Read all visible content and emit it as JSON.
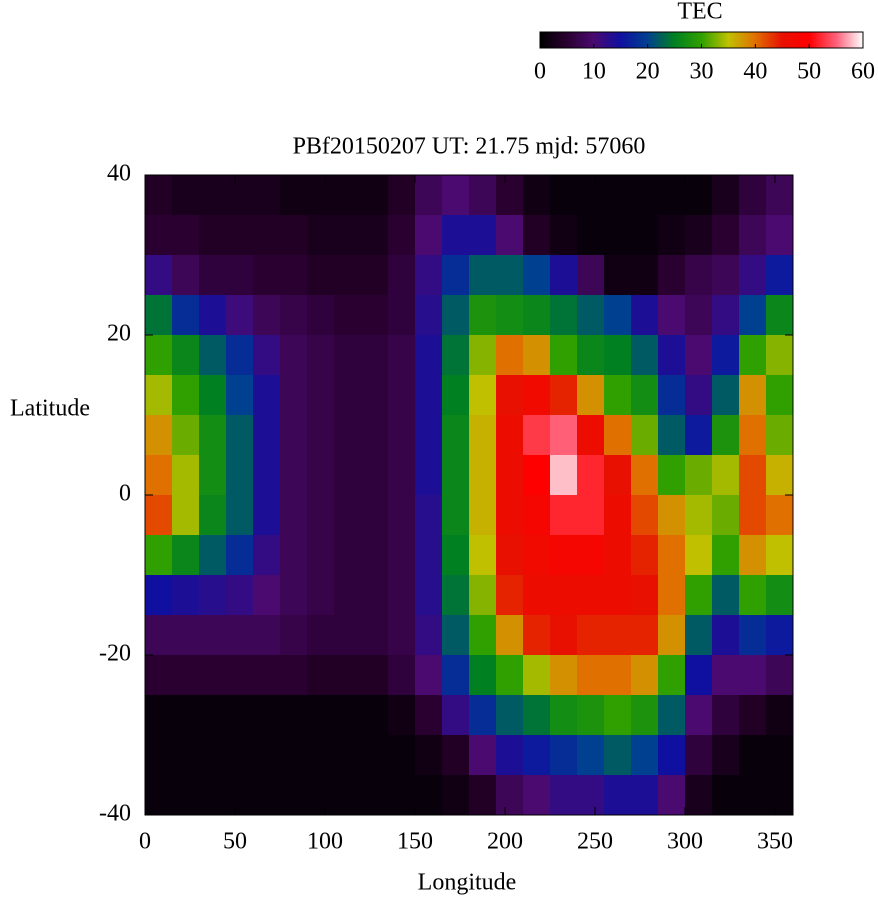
{
  "chart_data": {
    "type": "heatmap",
    "title": "PBf20150207  UT: 21.75  mjd: 57060",
    "x_label": "Longitude",
    "y_label": "Latitude",
    "colorbar_label": "TEC",
    "xlim": [
      0,
      360
    ],
    "ylim": [
      -40,
      40
    ],
    "zlim": [
      0,
      60
    ],
    "xticks": [
      0,
      50,
      100,
      150,
      200,
      250,
      300,
      350
    ],
    "yticks": [
      -40,
      -20,
      0,
      20,
      40
    ],
    "zticks": [
      0,
      10,
      20,
      30,
      40,
      50,
      60
    ],
    "colormap": [
      "#000000",
      "#2a0030",
      "#4a0a70",
      "#1010a0",
      "#004090",
      "#008020",
      "#30a000",
      "#c0c000",
      "#e07000",
      "#e81000",
      "#ff0000",
      "#ff6078",
      "#ffffff"
    ],
    "x": [
      7.5,
      22.5,
      37.5,
      52.5,
      67.5,
      82.5,
      97.5,
      112.5,
      127.5,
      142.5,
      157.5,
      172.5,
      187.5,
      202.5,
      217.5,
      232.5,
      247.5,
      262.5,
      277.5,
      292.5,
      307.5,
      322.5,
      337.5,
      352.5
    ],
    "y": [
      37.5,
      32.5,
      27.5,
      22.5,
      17.5,
      12.5,
      7.5,
      2.5,
      -2.5,
      -7.5,
      -12.5,
      -17.5,
      -22.5,
      -27.5,
      -32.5,
      -37.5
    ],
    "z": [
      [
        4,
        3,
        3,
        3,
        3,
        2,
        2,
        2,
        2,
        4,
        8,
        10,
        8,
        5,
        2,
        1,
        1,
        1,
        1,
        1,
        1,
        3,
        6,
        8
      ],
      [
        5,
        5,
        4,
        4,
        4,
        4,
        3,
        3,
        3,
        5,
        10,
        14,
        14,
        10,
        4,
        2,
        1,
        1,
        1,
        2,
        3,
        5,
        8,
        10
      ],
      [
        12,
        8,
        6,
        6,
        5,
        5,
        4,
        4,
        4,
        6,
        12,
        18,
        22,
        22,
        20,
        14,
        8,
        2,
        2,
        5,
        7,
        8,
        12,
        16
      ],
      [
        24,
        18,
        14,
        11,
        8,
        7,
        6,
        5,
        5,
        6,
        13,
        22,
        28,
        27,
        26,
        24,
        22,
        20,
        14,
        10,
        8,
        12,
        20,
        26
      ],
      [
        30,
        26,
        22,
        18,
        12,
        8,
        7,
        6,
        6,
        7,
        14,
        24,
        33,
        40,
        38,
        30,
        26,
        25,
        22,
        14,
        10,
        16,
        30,
        33
      ],
      [
        34,
        30,
        25,
        20,
        14,
        8,
        7,
        6,
        6,
        7,
        14,
        25,
        35,
        45,
        47,
        44,
        38,
        30,
        27,
        18,
        12,
        22,
        38,
        30
      ],
      [
        38,
        32,
        27,
        22,
        14,
        8,
        7,
        6,
        6,
        7,
        14,
        26,
        36,
        46,
        53,
        55,
        46,
        40,
        32,
        22,
        16,
        28,
        40,
        32
      ],
      [
        40,
        34,
        27,
        22,
        14,
        8,
        7,
        6,
        6,
        7,
        14,
        26,
        36,
        46,
        50,
        58,
        52,
        45,
        40,
        30,
        32,
        34,
        42,
        36
      ],
      [
        42,
        34,
        26,
        22,
        14,
        8,
        7,
        6,
        6,
        7,
        13,
        26,
        36,
        46,
        48,
        52,
        52,
        46,
        42,
        38,
        34,
        32,
        42,
        40
      ],
      [
        30,
        26,
        22,
        18,
        12,
        8,
        7,
        6,
        6,
        7,
        13,
        25,
        35,
        45,
        47,
        48,
        48,
        46,
        44,
        40,
        35,
        30,
        38,
        35
      ],
      [
        15,
        14,
        13,
        12,
        10,
        8,
        7,
        6,
        6,
        7,
        13,
        24,
        33,
        44,
        46,
        46,
        46,
        46,
        45,
        40,
        30,
        22,
        30,
        27
      ],
      [
        8,
        8,
        8,
        8,
        8,
        7,
        6,
        6,
        6,
        7,
        12,
        22,
        30,
        38,
        44,
        45,
        44,
        44,
        44,
        38,
        22,
        14,
        18,
        16
      ],
      [
        5,
        5,
        5,
        5,
        5,
        5,
        4,
        4,
        4,
        6,
        10,
        18,
        25,
        30,
        34,
        38,
        40,
        40,
        38,
        30,
        15,
        10,
        10,
        8
      ],
      [
        1,
        1,
        1,
        1,
        1,
        1,
        1,
        1,
        1,
        2,
        5,
        12,
        18,
        22,
        24,
        27,
        28,
        30,
        28,
        22,
        10,
        6,
        4,
        2
      ],
      [
        1,
        1,
        1,
        1,
        1,
        1,
        1,
        1,
        1,
        1,
        2,
        4,
        10,
        14,
        16,
        18,
        20,
        22,
        20,
        15,
        6,
        3,
        1,
        1
      ],
      [
        1,
        1,
        1,
        1,
        1,
        1,
        1,
        1,
        1,
        1,
        1,
        2,
        4,
        8,
        10,
        12,
        12,
        14,
        14,
        10,
        3,
        1,
        1,
        1
      ]
    ]
  }
}
